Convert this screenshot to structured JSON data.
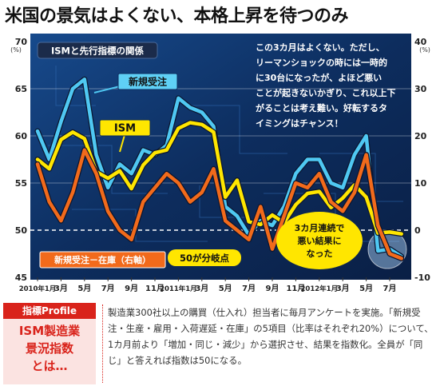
{
  "title": "米国の景気はよくない、本格上昇を待つのみ",
  "chart_data": {
    "type": "line",
    "title": "ISMと先行指標の関係",
    "x_labels": [
      "2010年1月",
      "3月",
      "5月",
      "7月",
      "9月",
      "11月",
      "2011年1月",
      "3月",
      "5月",
      "7月",
      "9月",
      "11月",
      "2012年1月",
      "3月",
      "5月",
      "7月"
    ],
    "x": [
      "2010-01",
      "2010-02",
      "2010-03",
      "2010-04",
      "2010-05",
      "2010-06",
      "2010-07",
      "2010-08",
      "2010-09",
      "2010-10",
      "2010-11",
      "2010-12",
      "2011-01",
      "2011-02",
      "2011-03",
      "2011-04",
      "2011-05",
      "2011-06",
      "2011-07",
      "2011-08",
      "2011-09",
      "2011-10",
      "2011-11",
      "2011-12",
      "2012-01",
      "2012-02",
      "2012-03",
      "2012-04",
      "2012-05",
      "2012-06",
      "2012-07",
      "2012-08"
    ],
    "left_axis": {
      "unit": "(%)",
      "ylim": [
        45,
        70
      ],
      "ticks": [
        70,
        65,
        60,
        55,
        50,
        45
      ]
    },
    "right_axis": {
      "unit": "(%)",
      "ylim": [
        -10,
        40
      ],
      "ticks": [
        40,
        30,
        20,
        10,
        0,
        -10
      ]
    },
    "reference_line": {
      "axis": "left",
      "value": 50,
      "style": "dashed"
    },
    "series": [
      {
        "name": "新規受注",
        "axis": "left",
        "color": "#4fc8f2",
        "values": [
          60.5,
          57.5,
          61.5,
          65,
          66,
          58,
          54.5,
          57,
          56,
          58.5,
          58,
          59,
          64,
          63,
          62.5,
          61,
          52.5,
          51.5,
          49.5,
          51,
          50.5,
          52.5,
          56,
          57.5,
          57.5,
          55,
          54.5,
          58,
          60,
          47.8,
          48,
          47.2
        ]
      },
      {
        "name": "ISM",
        "axis": "left",
        "color": "#ffe600",
        "values": [
          57.5,
          56.5,
          59.6,
          60.4,
          59.7,
          56.2,
          55.5,
          56.3,
          54.4,
          56.9,
          58.2,
          58.5,
          60.8,
          61.4,
          61.2,
          60.4,
          53.5,
          55.3,
          50.9,
          50.6,
          51.6,
          50.8,
          52.7,
          53.9,
          54.1,
          52.4,
          53.4,
          54.8,
          53.5,
          49.7,
          49.8,
          49.6
        ]
      },
      {
        "name": "新規受注－在庫（右軸）",
        "axis": "right",
        "color": "#f26a1b",
        "values": [
          14,
          6,
          2,
          8,
          17,
          12,
          4,
          0,
          -2,
          6,
          9,
          12,
          10,
          6,
          8,
          13,
          2,
          0,
          -2,
          5,
          -4,
          3,
          10,
          9,
          12,
          6,
          4,
          8,
          16,
          1,
          -5,
          -6
        ]
      }
    ]
  },
  "labels": {
    "new_orders": "新規受注",
    "ism": "ISM",
    "spread": "新規受注－在庫（右軸）",
    "threshold": "50が分岐点",
    "bubble_lines": [
      "3カ月連続で",
      "悪い結果に",
      "なった"
    ]
  },
  "note_lines": [
    "この3カ月はよくない。ただし、",
    "リーマンショックの時には一時的",
    "に30台になったが、よほど悪い",
    "ことが起きないかぎり、これ以上下",
    "がることは考え難い。好転するタ",
    "イミングはチャンス！"
  ],
  "profile": {
    "tag": "指標Profile",
    "heading_lines": [
      "ISM製造業",
      "景況指数",
      "とは…"
    ],
    "body": "製造業300社以上の購買（仕入れ）担当者に毎月アンケートを実施。「新規受注・生産・雇用・入荷遅延・在庫」の5項目（比率はそれぞれ20%）について、1カ月前より「増加・同じ・減少」から選択させ、結果を指数化。全員が「同じ」と答えれば指数は50になる。"
  },
  "colors": {
    "chart_bg": "#0d2d5e",
    "accent_red": "#d9231b",
    "yellow": "#ffe600",
    "blue": "#4fc8f2",
    "orange": "#f26a1b"
  }
}
